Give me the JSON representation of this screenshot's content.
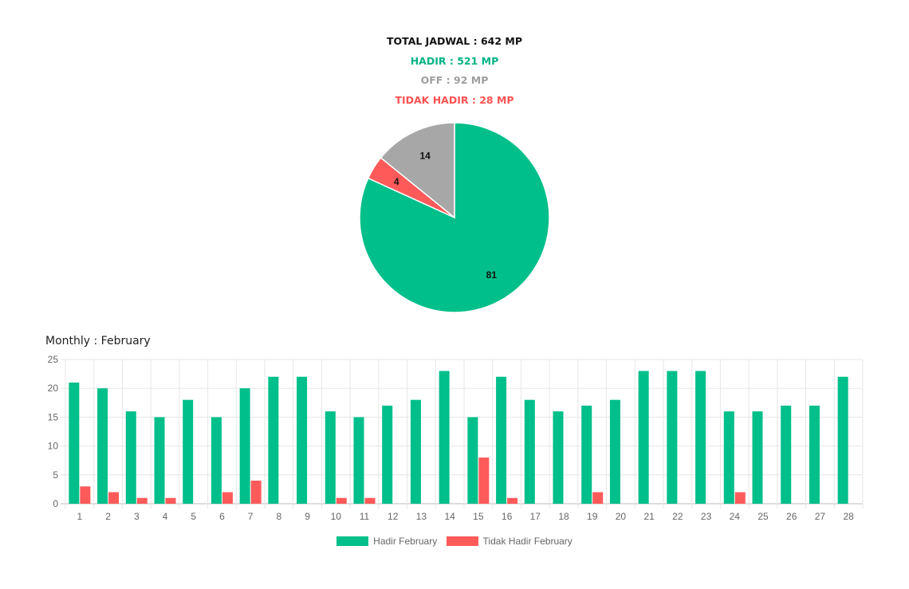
{
  "summary": {
    "total": "TOTAL JADWAL : 642 MP",
    "hadir": "HADIR : 521 MP",
    "off": "OFF : 92 MP",
    "tidak_hadir": "TIDAK HADIR : 28 MP"
  },
  "colors": {
    "hadir": "#00bf8a",
    "tidak_hadir": "#ff5a5a",
    "off": "#a7a7a7"
  },
  "monthly_title": "Monthly : February",
  "chart_data": [
    {
      "type": "pie",
      "slices": [
        {
          "label": "81",
          "value": 81,
          "color": "#00bf8a"
        },
        {
          "label": "4",
          "value": 4,
          "color": "#ff5a5a"
        },
        {
          "label": "14",
          "value": 14,
          "color": "#a7a7a7"
        }
      ]
    },
    {
      "type": "bar",
      "categories": [
        "1",
        "2",
        "3",
        "4",
        "5",
        "6",
        "7",
        "8",
        "9",
        "10",
        "11",
        "12",
        "13",
        "14",
        "15",
        "16",
        "17",
        "18",
        "19",
        "20",
        "21",
        "22",
        "23",
        "24",
        "25",
        "26",
        "27",
        "28"
      ],
      "series": [
        {
          "name": "Hadir February",
          "color": "#00bf8a",
          "values": [
            21,
            20,
            16,
            15,
            18,
            15,
            20,
            22,
            22,
            16,
            15,
            17,
            18,
            23,
            15,
            22,
            18,
            16,
            17,
            18,
            23,
            23,
            23,
            16,
            16,
            17,
            17,
            22
          ]
        },
        {
          "name": "Tidak Hadir February",
          "color": "#ff5a5a",
          "values": [
            3,
            2,
            1,
            1,
            0,
            2,
            4,
            0,
            0,
            1,
            1,
            0,
            0,
            0,
            8,
            1,
            0,
            0,
            2,
            0,
            0,
            0,
            0,
            2,
            0,
            0,
            0,
            0
          ]
        }
      ],
      "ylim": [
        0,
        25
      ],
      "yticks": [
        0,
        5,
        10,
        15,
        20,
        25
      ],
      "grid": true,
      "legend": "bottom-center"
    }
  ]
}
